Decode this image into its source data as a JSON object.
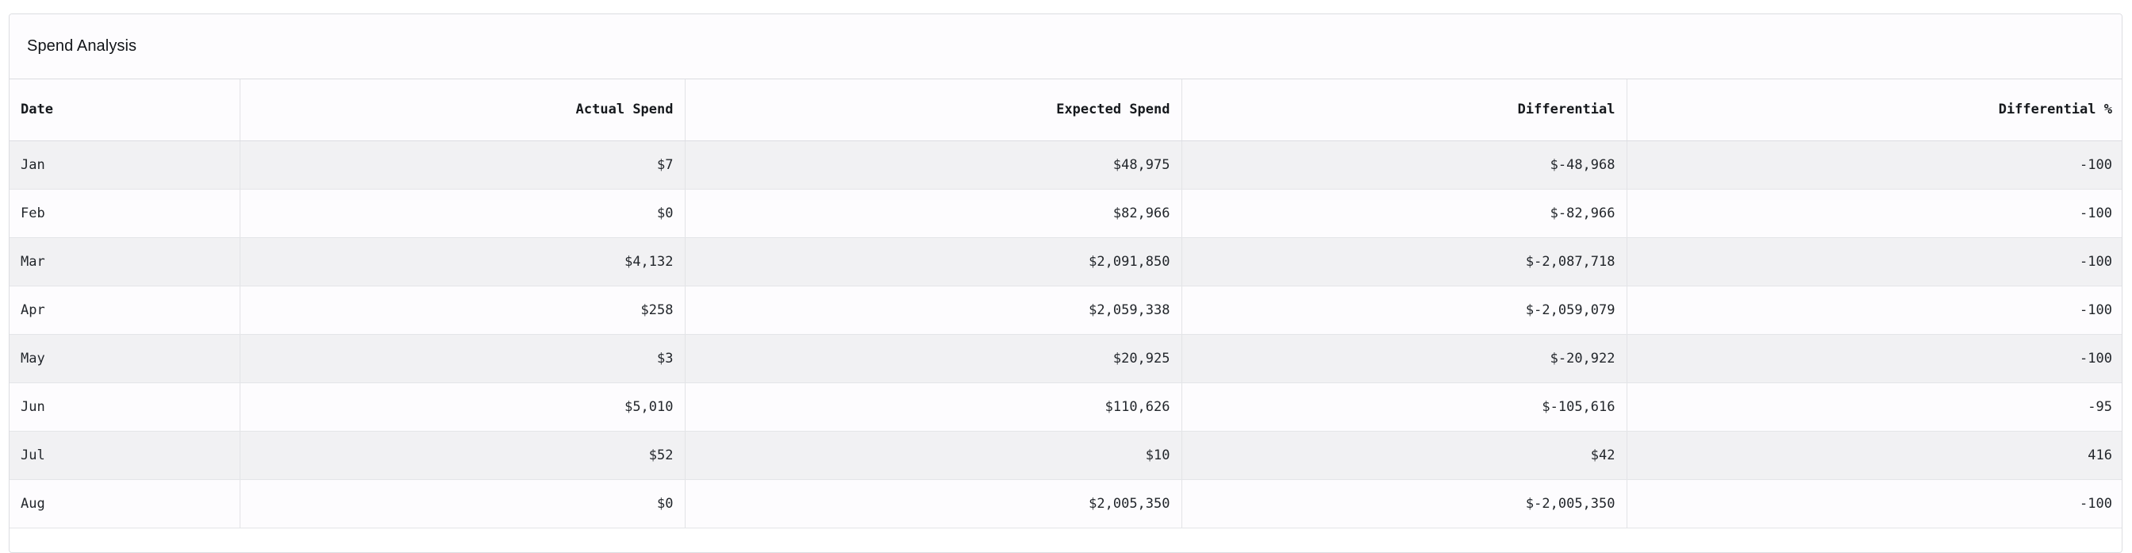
{
  "panel": {
    "title": "Spend Analysis"
  },
  "table": {
    "headers": {
      "date": "Date",
      "actual": "Actual Spend",
      "expected": "Expected Spend",
      "diff": "Differential",
      "pct": "Differential %"
    },
    "rows": [
      {
        "date": "Jan",
        "actual": "$7",
        "expected": "$48,975",
        "diff": "$-48,968",
        "pct": "-100"
      },
      {
        "date": "Feb",
        "actual": "$0",
        "expected": "$82,966",
        "diff": "$-82,966",
        "pct": "-100"
      },
      {
        "date": "Mar",
        "actual": "$4,132",
        "expected": "$2,091,850",
        "diff": "$-2,087,718",
        "pct": "-100"
      },
      {
        "date": "Apr",
        "actual": "$258",
        "expected": "$2,059,338",
        "diff": "$-2,059,079",
        "pct": "-100"
      },
      {
        "date": "May",
        "actual": "$3",
        "expected": "$20,925",
        "diff": "$-20,922",
        "pct": "-100"
      },
      {
        "date": "Jun",
        "actual": "$5,010",
        "expected": "$110,626",
        "diff": "$-105,616",
        "pct": "-95"
      },
      {
        "date": "Jul",
        "actual": "$52",
        "expected": "$10",
        "diff": "$42",
        "pct": "416"
      },
      {
        "date": "Aug",
        "actual": "$0",
        "expected": "$2,005,350",
        "diff": "$-2,005,350",
        "pct": "-100"
      }
    ]
  },
  "colors": {
    "border": "#dcdde1",
    "row_alt": "#f1f1f3",
    "row_base": "#fdfcfe",
    "text": "#22262b"
  }
}
